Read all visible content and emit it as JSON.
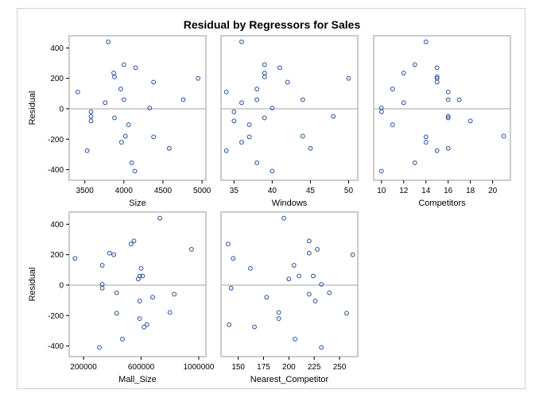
{
  "chart_data": {
    "type": "scatter",
    "title": "Residual by Regressors for Sales",
    "ylabel": "Residual",
    "colors": {
      "marker": "#1f4e9c",
      "reference_line": "#a0a0a0",
      "frame": "#9a9a9a"
    },
    "reference_line_y": 0,
    "ylim": [
      -470,
      480
    ],
    "yticks": [
      -400,
      -200,
      0,
      200,
      400
    ],
    "residuals": [
      440,
      290,
      270,
      235,
      210,
      200,
      175,
      130,
      110,
      60,
      60,
      40,
      5,
      -20,
      -50,
      -60,
      -80,
      -105,
      -180,
      -185,
      -220,
      -260,
      -275,
      -355,
      -410
    ],
    "panels": [
      {
        "xlabel": "Size",
        "xlim": [
          3300,
          5050
        ],
        "xticks": [
          3500,
          4000,
          4500,
          5000
        ],
        "xticklabels": [
          "3500",
          "4000",
          "4500",
          "5000"
        ],
        "x": [
          3800,
          4000,
          4150,
          3870,
          3880,
          4950,
          4380,
          3960,
          3410,
          4000,
          4760,
          3760,
          4330,
          3580,
          3580,
          3880,
          3580,
          4060,
          4020,
          4380,
          3970,
          4580,
          3530,
          4100,
          4140
        ]
      },
      {
        "xlabel": "Windows",
        "xlim": [
          33.3,
          51.2
        ],
        "xticks": [
          35,
          40,
          45,
          50
        ],
        "xticklabels": [
          "35",
          "40",
          "45",
          "50"
        ],
        "x": [
          36,
          39,
          41,
          39,
          39,
          50,
          42,
          38,
          34,
          44,
          38,
          36,
          40,
          35,
          48,
          39,
          35,
          37,
          44,
          37,
          36,
          45,
          34,
          38,
          40
        ]
      },
      {
        "xlabel": "Competitors",
        "xlim": [
          9.3,
          21.6
        ],
        "xticks": [
          10,
          12,
          14,
          16,
          18,
          20
        ],
        "xticklabels": [
          "10",
          "12",
          "14",
          "16",
          "18",
          "20"
        ],
        "x": [
          14,
          13,
          15,
          12,
          15,
          15,
          15,
          11,
          16,
          17,
          16,
          12,
          10,
          10,
          16,
          16,
          18,
          11,
          21,
          14,
          14,
          16,
          15,
          13,
          10
        ]
      },
      {
        "xlabel": "Mall_Size",
        "xlim": [
          100000,
          1050000
        ],
        "xticks": [
          200000,
          600000,
          1000000
        ],
        "xticklabels": [
          "200000",
          "600000",
          "1000000"
        ],
        "x": [
          730000,
          550000,
          530000,
          950000,
          380000,
          410000,
          140000,
          330000,
          600000,
          590000,
          610000,
          580000,
          330000,
          330000,
          430000,
          830000,
          680000,
          590000,
          800000,
          430000,
          590000,
          640000,
          620000,
          470000,
          310000
        ]
      },
      {
        "xlabel": "Nearest_Competitor",
        "xlim": [
          133,
          268
        ],
        "xticks": [
          150,
          175,
          200,
          225,
          250
        ],
        "xticklabels": [
          "150",
          "175",
          "200",
          "225",
          "250"
        ],
        "x": [
          195,
          220,
          140,
          228,
          220,
          263,
          145,
          205,
          162,
          210,
          224,
          200,
          232,
          143,
          240,
          220,
          178,
          226,
          190,
          257,
          190,
          141,
          166,
          206,
          232
        ]
      }
    ]
  }
}
